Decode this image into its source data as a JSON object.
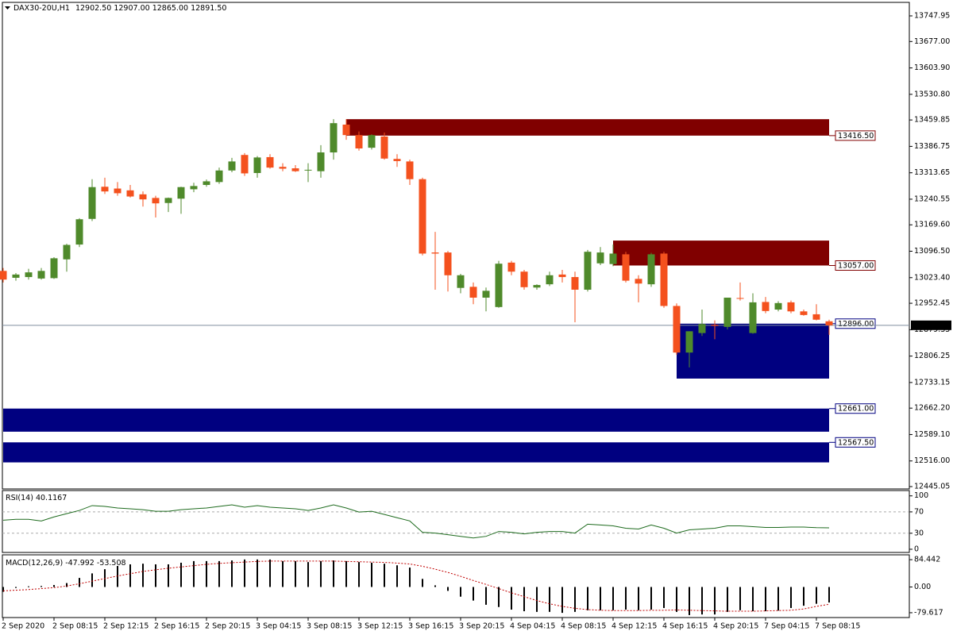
{
  "chart_data": [
    {
      "type": "candlestick",
      "header": {
        "symbol": "DAX30-20U,H1",
        "values": [
          12902.5,
          12907,
          12865,
          12891.5
        ],
        "value_labels": [
          "12902.50",
          "12907.00",
          "12865.00",
          "12891.50"
        ]
      },
      "categories": [
        "2 Sep 2020",
        null,
        null,
        null,
        "2 Sep 08:15",
        null,
        null,
        null,
        "2 Sep 12:15",
        null,
        null,
        null,
        "2 Sep 16:15",
        null,
        null,
        null,
        "2 Sep 20:15",
        null,
        null,
        null,
        "3 Sep 04:15",
        null,
        null,
        null,
        "3 Sep 08:15",
        null,
        null,
        null,
        "3 Sep 12:15",
        null,
        null,
        null,
        "3 Sep 16:15",
        null,
        null,
        null,
        "3 Sep 20:15",
        null,
        null,
        null,
        "4 Sep 04:15",
        null,
        null,
        null,
        "4 Sep 08:15",
        null,
        null,
        null,
        "4 Sep 12:15",
        null,
        null,
        null,
        "4 Sep 16:15",
        null,
        null,
        null,
        "4 Sep 20:15",
        null,
        null,
        null,
        "7 Sep 04:15",
        null,
        null,
        null,
        "7 Sep 08:15",
        null
      ],
      "open": [
        13042,
        13023,
        13025,
        13021,
        13022,
        13074,
        13115,
        13186,
        13275,
        13270,
        13265,
        13254,
        13244,
        13230,
        13242,
        13268,
        13280,
        13288,
        13320,
        13363,
        13313,
        13357,
        13330,
        13326,
        13320,
        13318,
        13370,
        13447,
        13418,
        13383,
        13414,
        13352,
        13345,
        13296,
        13093,
        13093,
        12995,
        12998,
        12968,
        12942,
        13065,
        13040,
        12996,
        13005,
        13032,
        13025,
        12990,
        13063,
        13061,
        13088,
        13020,
        13005,
        13090,
        12945,
        12816,
        12870,
        12893,
        12887,
        12967,
        12870,
        12956,
        12935,
        12955,
        12930,
        12922,
        12902.5
      ],
      "high": [
        13050,
        13036,
        13048,
        13050,
        13080,
        13117,
        13188,
        13296,
        13300,
        13288,
        13280,
        13262,
        13250,
        13245,
        13275,
        13286,
        13295,
        13328,
        13355,
        13368,
        13360,
        13365,
        13340,
        13335,
        13340,
        13390,
        13462,
        13462,
        13428,
        13420,
        13425,
        13365,
        13350,
        13300,
        13150,
        13097,
        13034,
        13010,
        12996,
        13070,
        13070,
        13045,
        13005,
        13040,
        13045,
        13040,
        13100,
        13108,
        13115,
        13095,
        13030,
        13092,
        13095,
        12952,
        12875,
        12935,
        12905,
        12968,
        13010,
        12980,
        12970,
        12958,
        12960,
        12935,
        12950,
        12907
      ],
      "low": [
        13010,
        13015,
        13018,
        13018,
        13020,
        13040,
        13108,
        13180,
        13255,
        13250,
        13245,
        13220,
        13190,
        13205,
        13200,
        13260,
        13275,
        13283,
        13315,
        13305,
        13300,
        13325,
        13318,
        13316,
        13288,
        13300,
        13350,
        13405,
        13375,
        13378,
        13350,
        13330,
        13280,
        13085,
        12990,
        12985,
        12980,
        12950,
        12930,
        12940,
        13030,
        12990,
        12990,
        13000,
        13010,
        12900,
        12985,
        13058,
        13055,
        13010,
        12955,
        12998,
        12940,
        12810,
        12775,
        12862,
        12853,
        12880,
        12960,
        12868,
        12925,
        12930,
        12925,
        12918,
        12905,
        12865
      ],
      "close": [
        13018,
        13032,
        13038,
        13042,
        13077,
        13114,
        13185,
        13274,
        13262,
        13257,
        13248,
        13240,
        13229,
        13244,
        13274,
        13277,
        13290,
        13320,
        13345,
        13312,
        13356,
        13328,
        13325,
        13318,
        13322,
        13370,
        13451,
        13418,
        13381,
        13418,
        13353,
        13346,
        13296,
        13090,
        13090,
        13030,
        13030,
        12968,
        12987,
        13062,
        13040,
        12997,
        13003,
        13030,
        13025,
        12990,
        13095,
        13093,
        13090,
        13015,
        13007,
        13088,
        12945,
        12816,
        12875,
        12895,
        12890,
        12968,
        12965,
        12955,
        12931,
        12953,
        12930,
        12920,
        12907,
        12891.5
      ],
      "up_color": "#4f8a2b",
      "down_color": "#f4511e",
      "ylim": [
        12438.5,
        13785.3
      ],
      "yticks": [
        13747.95,
        {
          "value": 13677,
          "label": "13677.00"
        },
        {
          "value": 13603.9,
          "label": "13603.90"
        },
        {
          "value": 13530.8,
          "label": "13530.80"
        },
        13459.85,
        13386.75,
        13313.65,
        13240.55,
        {
          "value": 13169.6,
          "label": "13169.60"
        },
        {
          "value": 13096.5,
          "label": "13096.50"
        },
        {
          "value": 13023.4,
          "label": "13023.40"
        },
        12952.45,
        12879.35,
        12806.25,
        12733.15,
        {
          "value": 12662.2,
          "label": "12662.20"
        },
        {
          "value": 12589.1,
          "label": "12589.10"
        },
        {
          "value": 12516,
          "label": "12516.00"
        },
        12445.05
      ],
      "zones": [
        {
          "value": 13416.5,
          "label": "13416.50",
          "edge": 13462,
          "start": 27,
          "color": "#800000"
        },
        {
          "value": 13057,
          "label": "13057.00",
          "edge": 13126,
          "start": 48,
          "color": "#800000"
        },
        {
          "value": 12896,
          "label": "12896.00",
          "edge": 12744,
          "start": 53,
          "color": "#000080"
        },
        {
          "value": 12661,
          "label": "12661.00",
          "edge": 12597,
          "start": 0,
          "color": "#000080"
        },
        {
          "value": 12567.5,
          "label": "12567.50",
          "edge": 12512,
          "start": 0,
          "color": "#000080"
        }
      ],
      "last": {
        "value": 12891.5,
        "label": "12891.50"
      }
    },
    {
      "type": "line",
      "series": [
        {
          "name": "RSI(14)",
          "color": "#1e6b1e",
          "values": [
            54.5,
            56,
            56,
            53,
            60.6,
            66.7,
            72.7,
            81.8,
            80.3,
            77.3,
            75.8,
            74.2,
            71.2,
            71.2,
            74.2,
            75.8,
            77.3,
            80.3,
            83.3,
            78.8,
            81.8,
            78.8,
            77.3,
            75.8,
            72.7,
            77.3,
            83.3,
            77.3,
            69.7,
            71.2,
            65.2,
            59.1,
            53,
            31.8,
            30.3,
            27.3,
            24.2,
            21.2,
            24.2,
            33.3,
            31.8,
            28.8,
            31.8,
            33.3,
            33.3,
            30.3,
            47,
            45.5,
            43.9,
            39.4,
            37.9,
            45.5,
            39.4,
            30.3,
            36.4,
            37.9,
            39.4,
            43.9,
            43.9,
            42.4,
            40.9,
            40.9,
            41.5,
            41.5,
            40.5,
            40.1167
          ]
        }
      ],
      "ylim": [
        -6,
        110
      ],
      "yticks": [
        0,
        30,
        70,
        100
      ],
      "levels": [
        30,
        70
      ]
    },
    {
      "type": "macd",
      "title": "MACD(12,26,9)",
      "series": [
        {
          "color": "#000000",
          "values": [
            -15,
            -3,
            2,
            3,
            6,
            12,
            28,
            42,
            55,
            65,
            70,
            72,
            70,
            70,
            75,
            80,
            80,
            80,
            82,
            85,
            85,
            85,
            80,
            80,
            77,
            80,
            82,
            80,
            77,
            75,
            72,
            67,
            60,
            25,
            5,
            -12,
            -30,
            -42,
            -55,
            -62,
            -70,
            -75,
            -77,
            -77,
            -80,
            -77,
            -72,
            -72,
            -72,
            -70,
            -72,
            -70,
            -65,
            -77,
            -87,
            -85,
            -85,
            -77,
            -72,
            -75,
            -75,
            -73,
            -65,
            -58,
            -52,
            -47.992
          ]
        },
        {
          "color": "#c00000",
          "values": [
            -12,
            -10,
            -8,
            -5,
            -2,
            3,
            10,
            18,
            26,
            34,
            41,
            48,
            53,
            58,
            62,
            66,
            70,
            73,
            75,
            77,
            79,
            80,
            80,
            80,
            80,
            80,
            80,
            79,
            78,
            77,
            76,
            74,
            71,
            64,
            55,
            45,
            33,
            20,
            8,
            -5,
            -18,
            -30,
            -42,
            -52,
            -60,
            -66,
            -70,
            -72,
            -73,
            -73,
            -73,
            -72,
            -72,
            -71,
            -72,
            -73,
            -74,
            -75,
            -75,
            -75,
            -74,
            -73,
            -72,
            -68,
            -60,
            -53.508
          ]
        }
      ],
      "ylim": [
        -94.5,
        99.4
      ],
      "yticks": [
        84.442,
        {
          "value": 0,
          "label": "0.00"
        },
        -79.617
      ]
    }
  ]
}
